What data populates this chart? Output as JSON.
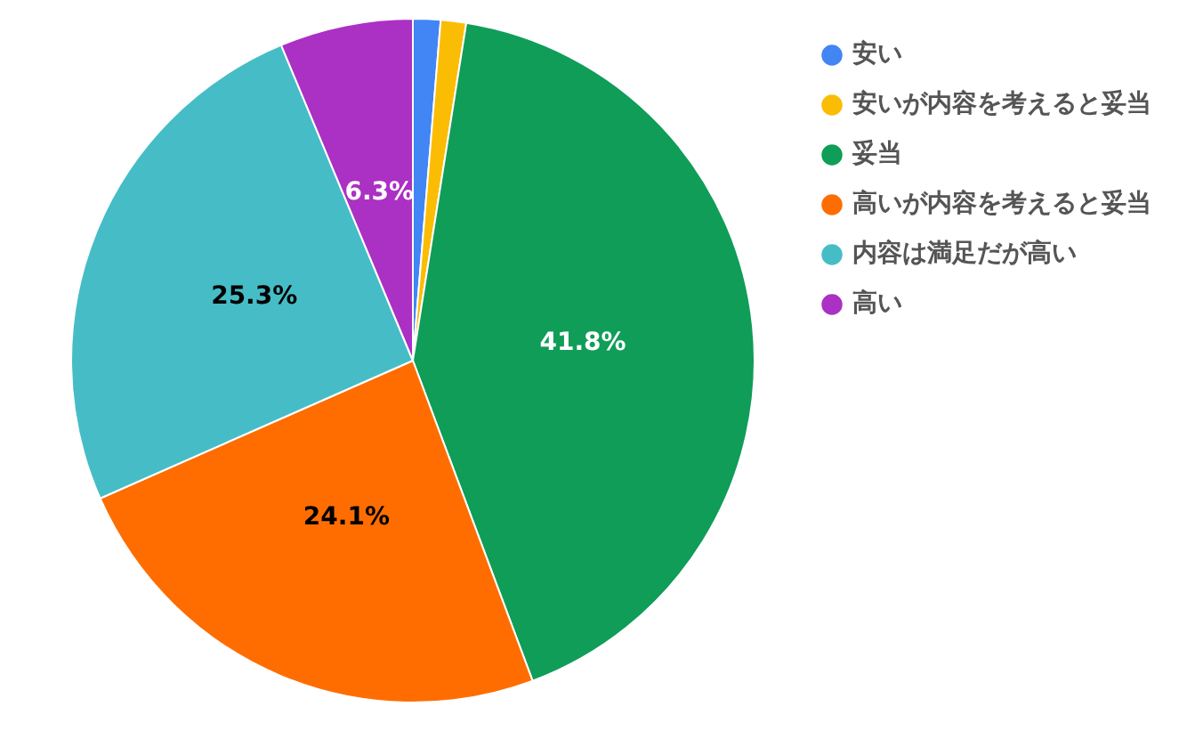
{
  "chart_data": {
    "type": "pie",
    "categories": [
      "安い",
      "安いが内容を考えると妥当",
      "妥当",
      "高いが内容を考えると妥当",
      "内容は満足だが高い",
      "高い"
    ],
    "values": [
      1.3,
      1.2,
      41.8,
      24.1,
      25.3,
      6.3
    ],
    "colors": [
      "#4285f4",
      "#fbbc04",
      "#0f9d58",
      "#ff6d01",
      "#46bdc6",
      "#ab30c4"
    ],
    "value_labels": [
      null,
      null,
      "41.8%",
      "24.1%",
      "25.3%",
      "6.3%"
    ],
    "legend": "right"
  }
}
